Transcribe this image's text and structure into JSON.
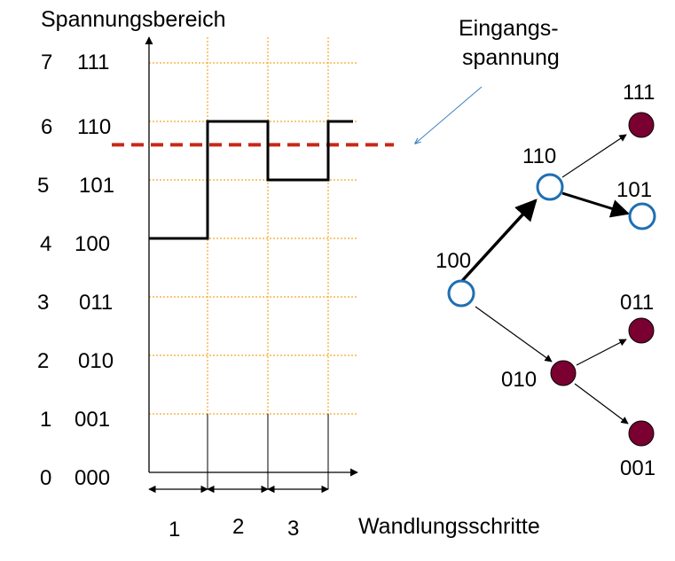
{
  "diagram": {
    "y_axis_title": "Spannungsbereich",
    "x_axis_title": "Wandlungsschritte",
    "input_label_line1": "Eingangs-",
    "input_label_line2": "spannung",
    "levels": [
      {
        "decimal": "7",
        "binary": "111"
      },
      {
        "decimal": "6",
        "binary": "110"
      },
      {
        "decimal": "5",
        "binary": "101"
      },
      {
        "decimal": "4",
        "binary": "100"
      },
      {
        "decimal": "3",
        "binary": "011"
      },
      {
        "decimal": "2",
        "binary": "010"
      },
      {
        "decimal": "1",
        "binary": "001"
      },
      {
        "decimal": "0",
        "binary": "000"
      }
    ],
    "steps": [
      "1",
      "2",
      "3"
    ],
    "step_signal_levels": [
      4,
      6,
      5,
      6
    ],
    "input_voltage_level": 5.6,
    "tree": {
      "root": "100",
      "level1": [
        "110",
        "010"
      ],
      "level2_upper": [
        "111",
        "101"
      ],
      "level2_lower": [
        "011",
        "001"
      ]
    },
    "colors": {
      "grid": "#f5a623",
      "input_line": "#c8281a",
      "input_arrow": "#3a7fc1",
      "node_active": "#1f6fb2",
      "node_inactive": "#7a0031",
      "signal": "#000000"
    }
  }
}
